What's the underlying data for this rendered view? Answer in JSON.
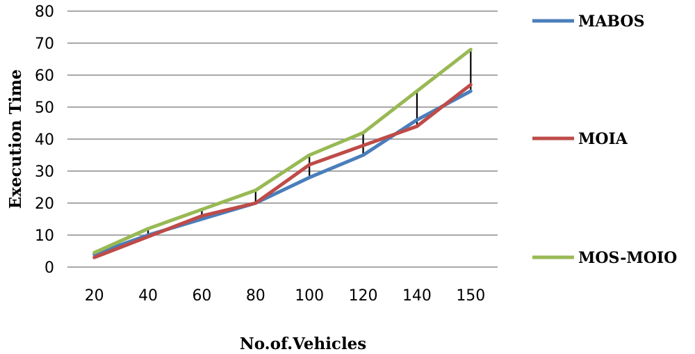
{
  "chart_data": {
    "type": "line",
    "title": "",
    "xlabel": "No.of.Vehicles",
    "ylabel": "Execution Time",
    "categories": [
      "20",
      "40",
      "60",
      "80",
      "100",
      "120",
      "140",
      "150"
    ],
    "ylim": [
      0,
      80
    ],
    "yticks": [
      0,
      10,
      20,
      30,
      40,
      50,
      60,
      70,
      80
    ],
    "grid": true,
    "legend_position": "right",
    "series": [
      {
        "name": "MABOS",
        "color": "#4a7ebb",
        "values": [
          4,
          10,
          15,
          20,
          28,
          35,
          46,
          55
        ]
      },
      {
        "name": "MOIA",
        "color": "#be4b48",
        "values": [
          3,
          9.5,
          16,
          20,
          32,
          38,
          44,
          57
        ]
      },
      {
        "name": "MOS-MOIO",
        "color": "#98b954",
        "values": [
          4.5,
          12,
          18,
          24,
          35,
          42,
          55,
          68
        ]
      }
    ],
    "error_bar_color": "#000000"
  }
}
